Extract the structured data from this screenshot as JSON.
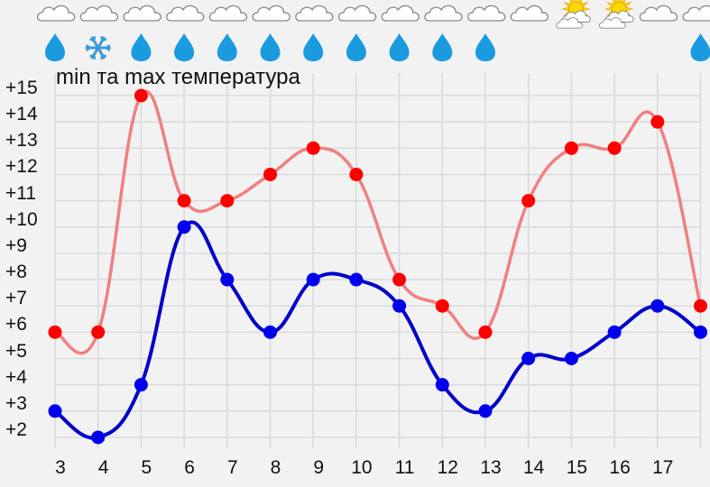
{
  "chart_data": {
    "type": "line",
    "title": "min та max температура",
    "xlabel": "",
    "ylabel": "",
    "x": [
      "3",
      "4",
      "5",
      "6",
      "7",
      "8",
      "9",
      "10",
      "11",
      "12",
      "13",
      "14",
      "15",
      "16",
      "17",
      ""
    ],
    "y_ticks": [
      "+15",
      "+14",
      "+13",
      "+12",
      "+11",
      "+10",
      "+9",
      "+8",
      "+7",
      "+6",
      "+5",
      "+4",
      "+3",
      "+2"
    ],
    "ylim": [
      2,
      15
    ],
    "grid": true,
    "legend": "none",
    "series": [
      {
        "name": "max",
        "color": "#ff0000",
        "line_color": "#f08080",
        "values": [
          6,
          6,
          15,
          11,
          11,
          12,
          13,
          12,
          8,
          7,
          6,
          11,
          13,
          13,
          14,
          7
        ]
      },
      {
        "name": "min",
        "color": "#0000ee",
        "line_color": "#0000cc",
        "values": [
          3,
          2,
          4,
          10,
          8,
          6,
          8,
          8,
          7,
          4,
          3,
          5,
          5,
          6,
          7,
          6
        ]
      }
    ]
  },
  "weather_icons": {
    "sky": [
      "cloud",
      "cloud",
      "cloud",
      "cloud",
      "cloud",
      "cloud",
      "cloud",
      "cloud",
      "cloud",
      "cloud",
      "cloud",
      "cloud",
      "sun-cloud",
      "sun-cloud",
      "cloud",
      "cloud"
    ],
    "precip": [
      "rain",
      "snow",
      "rain",
      "rain",
      "rain",
      "rain",
      "rain",
      "rain",
      "rain",
      "rain",
      "rain",
      "none",
      "none",
      "none",
      "none",
      "rain"
    ]
  },
  "colors": {
    "background": "#f2f2f2",
    "grid": "#d9d9d9",
    "rain": "#1a9be0",
    "snow": "#3a9ad9",
    "sun": "#ffd700"
  }
}
